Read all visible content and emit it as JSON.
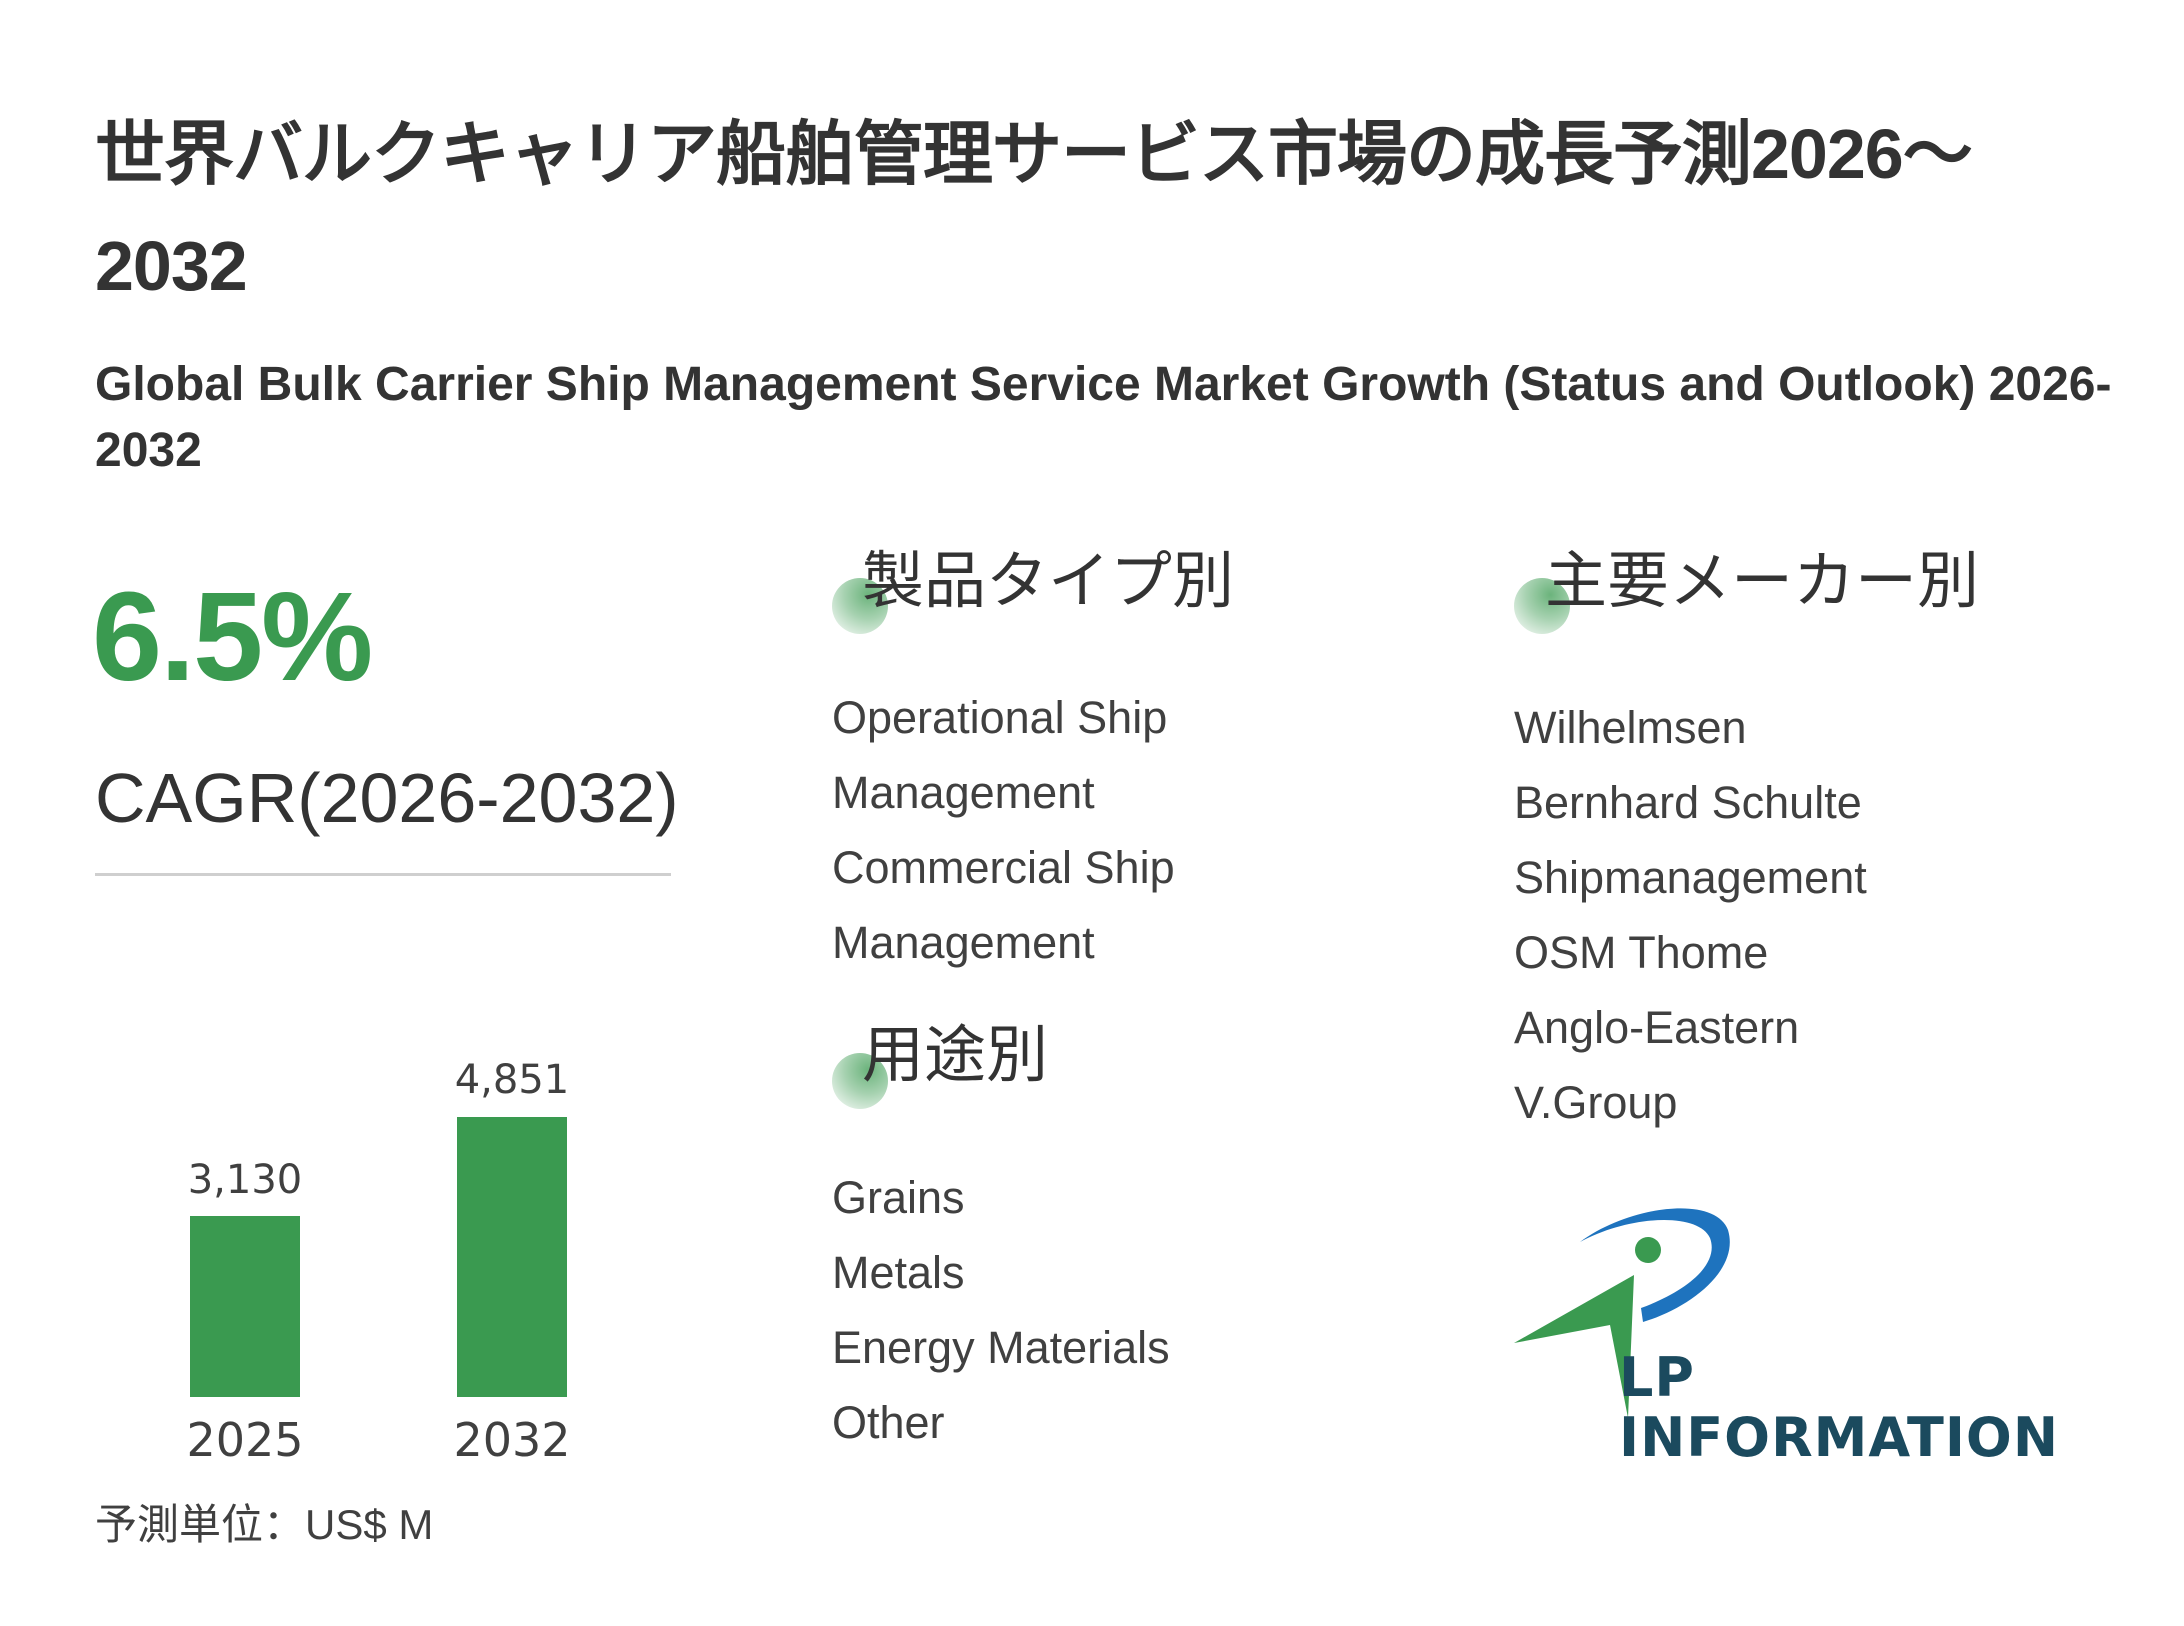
{
  "header": {
    "title_jp": "世界バルクキャリア船舶管理サービス市場の成長予測2026～2032",
    "title_en": "Global Bulk Carrier Ship Management Service Market Growth (Status and Outlook) 2026-2032"
  },
  "cagr": {
    "value": "6.5%",
    "label": "CAGR(2026-2032)"
  },
  "unit_label": "予測単位：US$ M",
  "sections": {
    "product_type": {
      "heading": "製品タイプ別",
      "items": [
        "Operational Ship",
        "Management",
        "Commercial Ship",
        "Management"
      ]
    },
    "application": {
      "heading": "用途別",
      "items": [
        "Grains",
        "Metals",
        "Energy Materials",
        "Other"
      ]
    },
    "manufacturers": {
      "heading": "主要メーカー別",
      "items": [
        "Wilhelmsen",
        "Bernhard Schulte",
        "Shipmanagement",
        "OSM Thome",
        "Anglo-Eastern",
        "V.Group"
      ]
    }
  },
  "logo": {
    "text": "LP INFORMATION"
  },
  "colors": {
    "accent_green": "#3a9a50",
    "logo_blue": "#1e73be",
    "logo_text": "#1b4a5e",
    "text": "#333333"
  },
  "chart_data": {
    "type": "bar",
    "title": "",
    "categories": [
      "2025",
      "2032"
    ],
    "values": [
      3130,
      4851
    ],
    "value_labels": [
      "3,130",
      "4,851"
    ],
    "xlabel": "",
    "ylabel": "US$ M",
    "unit": "US$ M",
    "ylim": [
      0,
      5000
    ],
    "grid": false,
    "legend": null,
    "bar_color": "#3a9a50"
  }
}
